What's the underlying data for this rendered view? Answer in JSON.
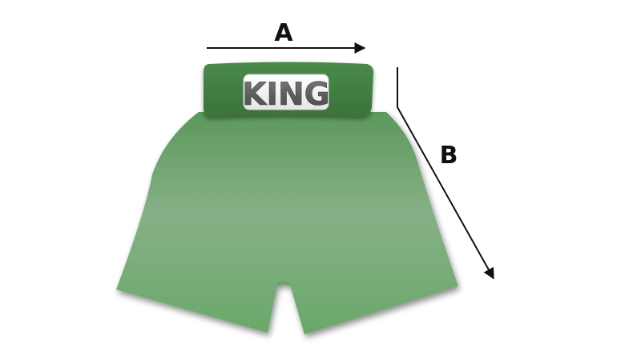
{
  "diagram": {
    "brand_logo": {
      "text": "KING"
    },
    "dimensions": [
      {
        "label": "A"
      },
      {
        "label": "B"
      }
    ],
    "colors": {
      "waistband_top": "#4a8a4a",
      "waistband_bottom": "#3b7239",
      "shorts_top": "#5c985c",
      "shorts_mid": "#86b086",
      "shorts_bottom": "#6aa86a",
      "logo_plate": "#f4f4f4",
      "logo_text": "#5e5e5e",
      "arrow": "#111111"
    }
  }
}
